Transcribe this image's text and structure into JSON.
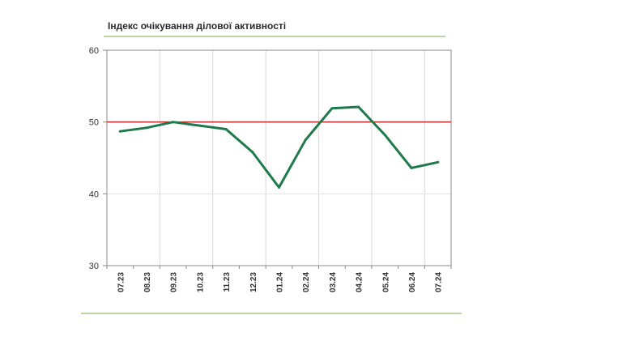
{
  "chart_data": {
    "type": "line",
    "title": "Індекс очікування ділової активності",
    "xlabel": "",
    "ylabel": "",
    "categories": [
      "07.23",
      "08.23",
      "09.23",
      "10.23",
      "11.23",
      "12.23",
      "01.24",
      "02.24",
      "03.24",
      "04.24",
      "05.24",
      "06.24",
      "07.24"
    ],
    "series": [
      {
        "values": [
          48.7,
          49.2,
          50.0,
          49.5,
          49.0,
          45.8,
          40.9,
          47.5,
          51.9,
          52.1,
          48.2,
          43.6,
          44.4
        ],
        "color": "#1e7a4a"
      }
    ],
    "reference_line": {
      "value": 50,
      "color": "#c8282a"
    },
    "ylim": [
      30,
      60
    ],
    "yticks": [
      30,
      40,
      50,
      60
    ],
    "grid": "vertical",
    "legend": "none"
  }
}
